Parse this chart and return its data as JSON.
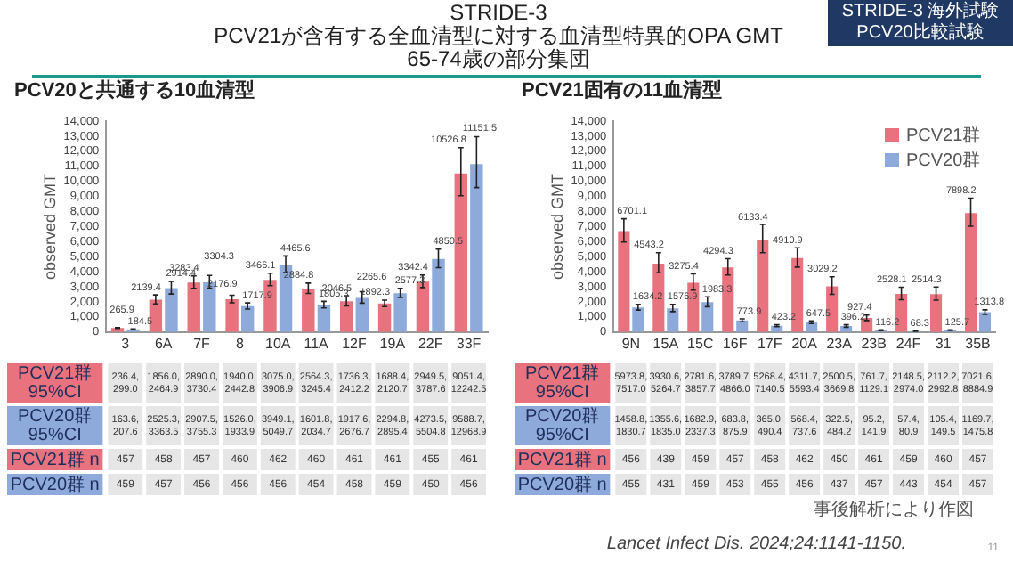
{
  "chart_data": [
    {
      "type": "bar",
      "title": "PCV20と共通する10血清型",
      "ylabel": "observed GMT",
      "categories": [
        "3",
        "6A",
        "7F",
        "8",
        "10A",
        "11A",
        "12F",
        "19A",
        "22F",
        "33F"
      ],
      "series": [
        {
          "color": "#e8737f",
          "values": [
            265.9,
            2139.4,
            3283.4,
            2176.9,
            3466.1,
            2884.8,
            2046.5,
            1892.3,
            3342.4,
            10526.8
          ],
          "errors": [
            [
              236.4,
              299.0
            ],
            [
              1856.0,
              2464.9
            ],
            [
              2890.0,
              3730.4
            ],
            [
              1940.0,
              2442.8
            ],
            [
              3075.0,
              3906.9
            ],
            [
              2564.3,
              3245.4
            ],
            [
              1736.3,
              2412.2
            ],
            [
              1688.4,
              2120.7
            ],
            [
              2949.5,
              3787.6
            ],
            [
              9051.4,
              12242.5
            ]
          ]
        },
        {
          "color": "#8eaadb",
          "values": [
            184.5,
            2914.4,
            3304.3,
            1717.9,
            4465.6,
            1805.3,
            2265.6,
            2577.3,
            4850.5,
            11151.5
          ],
          "errors": [
            [
              163.6,
              207.6
            ],
            [
              2525.3,
              3363.5
            ],
            [
              2907.5,
              3755.3
            ],
            [
              1526.0,
              1933.9
            ],
            [
              3949.1,
              5049.7
            ],
            [
              1601.8,
              2034.7
            ],
            [
              1917.6,
              2676.7
            ],
            [
              2294.8,
              2895.4
            ],
            [
              4273.5,
              5504.8
            ],
            [
              9588.7,
              12968.9
            ]
          ]
        }
      ],
      "ylim": [
        0,
        14000
      ],
      "yticks": [
        {
          "value": 0,
          "label": "0"
        },
        {
          "value": 1000,
          "label": "1,000"
        },
        {
          "value": 2000,
          "label": "2,000"
        },
        {
          "value": 3000,
          "label": "3,000"
        },
        {
          "value": 4000,
          "label": "4,000"
        },
        {
          "value": 5000,
          "label": "5,000"
        },
        {
          "value": 6000,
          "label": "6,000"
        },
        {
          "value": 7000,
          "label": "7,000"
        },
        {
          "value": 8000,
          "label": "8,000"
        },
        {
          "value": 9000,
          "label": "9,000"
        },
        {
          "value": 10000,
          "label": "10,000"
        },
        {
          "value": 11000,
          "label": "11,000"
        },
        {
          "value": 12000,
          "label": "12,000"
        },
        {
          "value": 13000,
          "label": "13,000"
        },
        {
          "value": 14000,
          "label": "14,000"
        }
      ],
      "grid": false,
      "legend": false,
      "data_labels": true,
      "annotations": [
        "PCV21群 95%CI",
        "PCV20群 95%CI",
        "PCV21群 n",
        "PCV20群 n",
        "236.4, 299.0",
        "1856.0, 2464.9",
        "2890.0, 3730.4",
        "1940.0, 2442.8",
        "3075.0, 3906.9",
        "2564.3, 3245.4",
        "1736.3, 2412.2",
        "1688.4, 2120.7",
        "2949.5, 3787.6",
        "9051.4, 12242.5",
        "163.6, 207.6",
        "2525.3, 3363.5",
        "2907.5, 3755.3",
        "1526.0, 1933.9",
        "3949.1, 5049.7",
        "1601.8, 2034.7",
        "1917.6, 2676.7",
        "2294.8, 2895.4",
        "4273.5, 5504.8",
        "9588.7, 12968.9",
        "457",
        "458",
        "457",
        "460",
        "462",
        "460",
        "461",
        "461",
        "455",
        "461",
        "459",
        "457",
        "456",
        "456",
        "456",
        "454",
        "458",
        "459",
        "450",
        "456",
        "STRIDE-3",
        "PCV21が含有する全血清型に対する血清型特異的OPA GMT",
        "65-74歳の部分集団",
        "STRIDE-3 海外試験",
        "PCV20比較試験"
      ]
    },
    {
      "type": "bar",
      "title": "PCV21固有の11血清型",
      "ylabel": "observed GMT",
      "categories": [
        "9N",
        "15A",
        "15C",
        "16F",
        "17F",
        "20A",
        "23A",
        "23B",
        "24F",
        "31",
        "35B"
      ],
      "series": [
        {
          "name": "PCV21群",
          "color": "#e8737f",
          "values": [
            6701.1,
            4543.2,
            3275.4,
            4294.3,
            6133.4,
            4910.9,
            3029.2,
            927.4,
            2528.1,
            2514.3,
            7898.2
          ],
          "errors": [
            [
              5973.8,
              7517.0
            ],
            [
              3930.6,
              5264.7
            ],
            [
              2781.6,
              3857.7
            ],
            [
              3789.7,
              4866.0
            ],
            [
              5268.4,
              7140.5
            ],
            [
              4311.7,
              5593.4
            ],
            [
              2500.5,
              3669.8
            ],
            [
              761.7,
              1129.1
            ],
            [
              2148.5,
              2974.0
            ],
            [
              2112.2,
              2992.8
            ],
            [
              7021.6,
              8884.9
            ]
          ]
        },
        {
          "name": "PCV20群",
          "color": "#8eaadb",
          "values": [
            1634.2,
            1576.9,
            1983.3,
            773.9,
            423.2,
            647.5,
            396.2,
            116.2,
            68.3,
            125.7,
            1313.8
          ],
          "errors": [
            [
              1458.8,
              1830.7
            ],
            [
              1355.6,
              1835.0
            ],
            [
              1682.9,
              2337.3
            ],
            [
              683.8,
              875.9
            ],
            [
              365.0,
              490.4
            ],
            [
              568.4,
              737.6
            ],
            [
              322.5,
              484.2
            ],
            [
              95.2,
              141.9
            ],
            [
              57.4,
              80.9
            ],
            [
              105.4,
              149.5
            ],
            [
              1169.7,
              1475.8
            ]
          ]
        }
      ],
      "ylim": [
        0,
        14000
      ],
      "yticks": [
        {
          "value": 0,
          "label": "0"
        },
        {
          "value": 1000,
          "label": "1,000"
        },
        {
          "value": 2000,
          "label": "2,000"
        },
        {
          "value": 3000,
          "label": "3,000"
        },
        {
          "value": 4000,
          "label": "4,000"
        },
        {
          "value": 5000,
          "label": "5,000"
        },
        {
          "value": 6000,
          "label": "6,000"
        },
        {
          "value": 7000,
          "label": "7,000"
        },
        {
          "value": 8000,
          "label": "8,000"
        },
        {
          "value": 9000,
          "label": "9,000"
        },
        {
          "value": 10000,
          "label": "10,000"
        },
        {
          "value": 11000,
          "label": "11,000"
        },
        {
          "value": 12000,
          "label": "12,000"
        },
        {
          "value": 13000,
          "label": "13,000"
        },
        {
          "value": 14000,
          "label": "14,000"
        }
      ],
      "grid": false,
      "legend": "top right",
      "data_labels": true,
      "annotations": [
        "PCV21群 95%CI",
        "PCV20群 95%CI",
        "PCV21群 n",
        "PCV20群 n",
        "5973.8, 7517.0",
        "3930.6, 5264.7",
        "2781.6, 3857.7",
        "3789.7, 4866.0",
        "5268.4, 7140.5",
        "4311.7, 5593.4",
        "2500.5, 3669.8",
        "761.7, 1129.1",
        "2148.5, 2974.0",
        "2112.2, 2992.8",
        "7021.6, 8884.9",
        "1458.8, 1830.7",
        "1355.6, 1835.0",
        "1682.9, 2337.3",
        "683.8, 875.9",
        "365.0, 490.4",
        "568.4, 737.6",
        "322.5, 484.2",
        "95.2, 141.9",
        "57.4, 80.9",
        "105.4, 149.5",
        "1169.7, 1475.8",
        "456",
        "439",
        "459",
        "457",
        "458",
        "462",
        "450",
        "461",
        "459",
        "460",
        "457",
        "455",
        "431",
        "459",
        "453",
        "455",
        "456",
        "437",
        "457",
        "443",
        "454",
        "457",
        "事後解析により作図",
        "Lancet Infect Dis. 2024;24:1141-1150.",
        "11"
      ]
    }
  ]
}
